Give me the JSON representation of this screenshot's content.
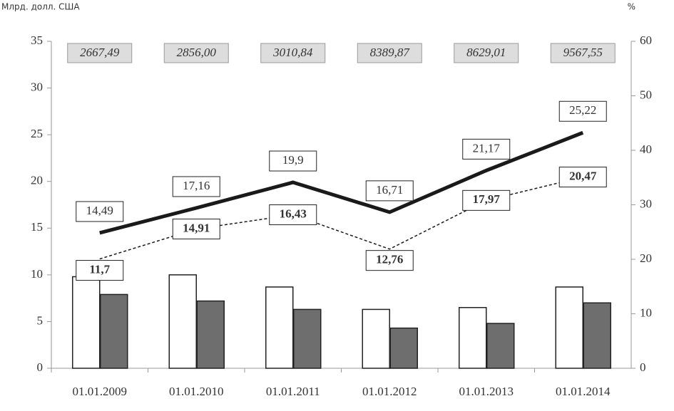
{
  "chart_data": {
    "type": "bar-line",
    "y_label": "Млрд. долл. США",
    "y2_label": "%",
    "categories": [
      "01.01.2009",
      "01.01.2010",
      "01.01.2011",
      "01.01.2012",
      "01.01.2013",
      "01.01.2014"
    ],
    "annotations": [
      "2667,49",
      "2856,00",
      "3010,84",
      "8389,87",
      "8629,01",
      "9567,55"
    ],
    "series": [
      {
        "type": "bar",
        "color": "#ffffff",
        "values": [
          9.8,
          10.0,
          8.7,
          6.3,
          6.5,
          8.7
        ]
      },
      {
        "type": "bar",
        "color": "#6e6e6e",
        "values": [
          7.9,
          7.2,
          6.3,
          4.3,
          4.8,
          7.0
        ]
      },
      {
        "type": "line",
        "color": "#1a1a1a",
        "values": [
          14.49,
          17.16,
          19.9,
          16.71,
          21.17,
          25.22
        ],
        "value_labels": [
          "14,49",
          "17,16",
          "19,9",
          "16,71",
          "21,17",
          "25,22"
        ]
      },
      {
        "type": "line",
        "color": "#1a1a1a",
        "dashed": true,
        "values": [
          11.7,
          14.91,
          16.43,
          12.76,
          17.97,
          20.47
        ],
        "value_labels": [
          "11,7",
          "14,91",
          "16,43",
          "12,76",
          "17,97",
          "20,47"
        ]
      }
    ],
    "ylim": [
      0,
      35
    ],
    "yticks": [
      0,
      5,
      10,
      15,
      20,
      25,
      30,
      35
    ],
    "y2lim": [
      0,
      60
    ],
    "y2ticks": [
      0,
      10,
      20,
      30,
      40,
      50,
      60
    ]
  }
}
